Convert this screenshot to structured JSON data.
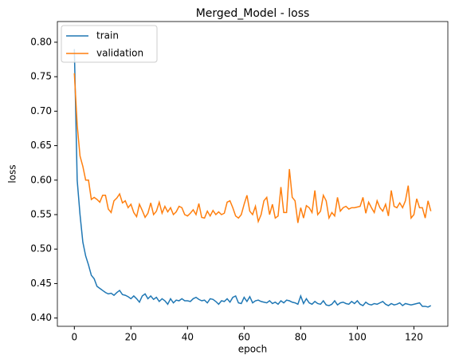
{
  "chart_data": {
    "type": "line",
    "title": "Merged_Model - loss",
    "x_label": "epoch",
    "y_label": "loss",
    "x": [
      0,
      1,
      2,
      3,
      4,
      5,
      6,
      7,
      8,
      9,
      10,
      11,
      12,
      13,
      14,
      15,
      16,
      17,
      18,
      19,
      20,
      21,
      22,
      23,
      24,
      25,
      26,
      27,
      28,
      29,
      30,
      31,
      32,
      33,
      34,
      35,
      36,
      37,
      38,
      39,
      40,
      41,
      42,
      43,
      44,
      45,
      46,
      47,
      48,
      49,
      50,
      51,
      52,
      53,
      54,
      55,
      56,
      57,
      58,
      59,
      60,
      61,
      62,
      63,
      64,
      65,
      66,
      67,
      68,
      69,
      70,
      71,
      72,
      73,
      74,
      75,
      76,
      77,
      78,
      79,
      80,
      81,
      82,
      83,
      84,
      85,
      86,
      87,
      88,
      89,
      90,
      91,
      92,
      93,
      94,
      95,
      96,
      97,
      98,
      99,
      100,
      101,
      102,
      103,
      104,
      105,
      106,
      107,
      108,
      109,
      110,
      111,
      112,
      113,
      114,
      115,
      116,
      117,
      118,
      119,
      120,
      121,
      122,
      123,
      124,
      125,
      126
    ],
    "series": [
      {
        "name": "train",
        "color": "#1f77b4",
        "values": [
          0.79,
          0.6,
          0.55,
          0.51,
          0.49,
          0.477,
          0.462,
          0.457,
          0.446,
          0.443,
          0.44,
          0.437,
          0.435,
          0.436,
          0.433,
          0.437,
          0.44,
          0.434,
          0.433,
          0.431,
          0.428,
          0.432,
          0.428,
          0.423,
          0.432,
          0.435,
          0.428,
          0.432,
          0.427,
          0.43,
          0.424,
          0.428,
          0.425,
          0.42,
          0.428,
          0.422,
          0.426,
          0.425,
          0.428,
          0.425,
          0.425,
          0.424,
          0.428,
          0.43,
          0.427,
          0.425,
          0.426,
          0.422,
          0.428,
          0.427,
          0.424,
          0.42,
          0.425,
          0.424,
          0.428,
          0.423,
          0.43,
          0.432,
          0.422,
          0.421,
          0.43,
          0.424,
          0.431,
          0.422,
          0.425,
          0.426,
          0.424,
          0.423,
          0.422,
          0.425,
          0.421,
          0.423,
          0.42,
          0.425,
          0.422,
          0.426,
          0.425,
          0.423,
          0.422,
          0.42,
          0.432,
          0.421,
          0.428,
          0.422,
          0.42,
          0.424,
          0.421,
          0.42,
          0.425,
          0.419,
          0.418,
          0.42,
          0.425,
          0.419,
          0.422,
          0.423,
          0.421,
          0.42,
          0.424,
          0.421,
          0.425,
          0.42,
          0.418,
          0.423,
          0.42,
          0.419,
          0.421,
          0.42,
          0.422,
          0.424,
          0.42,
          0.418,
          0.421,
          0.419,
          0.42,
          0.422,
          0.418,
          0.421,
          0.42,
          0.419,
          0.42,
          0.421,
          0.422,
          0.417,
          0.417,
          0.416,
          0.418
        ]
      },
      {
        "name": "validation",
        "color": "#ff7f0e",
        "values": [
          0.755,
          0.68,
          0.635,
          0.62,
          0.6,
          0.6,
          0.572,
          0.575,
          0.572,
          0.568,
          0.578,
          0.578,
          0.558,
          0.553,
          0.57,
          0.574,
          0.58,
          0.567,
          0.57,
          0.56,
          0.565,
          0.553,
          0.547,
          0.565,
          0.556,
          0.546,
          0.552,
          0.567,
          0.55,
          0.555,
          0.568,
          0.552,
          0.562,
          0.554,
          0.56,
          0.55,
          0.554,
          0.562,
          0.56,
          0.55,
          0.548,
          0.552,
          0.557,
          0.55,
          0.566,
          0.546,
          0.545,
          0.555,
          0.548,
          0.556,
          0.55,
          0.554,
          0.55,
          0.552,
          0.568,
          0.57,
          0.56,
          0.548,
          0.545,
          0.55,
          0.565,
          0.578,
          0.555,
          0.55,
          0.562,
          0.54,
          0.55,
          0.57,
          0.575,
          0.55,
          0.565,
          0.545,
          0.548,
          0.59,
          0.553,
          0.553,
          0.616,
          0.575,
          0.57,
          0.538,
          0.56,
          0.545,
          0.563,
          0.56,
          0.553,
          0.585,
          0.55,
          0.555,
          0.578,
          0.57,
          0.545,
          0.553,
          0.548,
          0.575,
          0.555,
          0.56,
          0.562,
          0.558,
          0.56,
          0.56,
          0.561,
          0.562,
          0.575,
          0.552,
          0.568,
          0.56,
          0.553,
          0.57,
          0.56,
          0.555,
          0.565,
          0.548,
          0.585,
          0.562,
          0.56,
          0.567,
          0.56,
          0.57,
          0.592,
          0.545,
          0.55,
          0.573,
          0.56,
          0.56,
          0.545,
          0.57,
          0.555
        ]
      }
    ],
    "xlim": [
      -6,
      132
    ],
    "xticks": [
      0,
      20,
      40,
      60,
      80,
      100,
      120
    ],
    "ylim": [
      0.388,
      0.83
    ],
    "yticks": [
      {
        "value": 0.4,
        "label": "0.40"
      },
      0.45,
      {
        "value": 0.5,
        "label": "0.50"
      },
      0.55,
      {
        "value": 0.6,
        "label": "0.60"
      },
      0.65,
      {
        "value": 0.7,
        "label": "0.70"
      },
      0.75,
      {
        "value": 0.8,
        "label": "0.80"
      }
    ],
    "legend": "upper left",
    "grid": false
  }
}
